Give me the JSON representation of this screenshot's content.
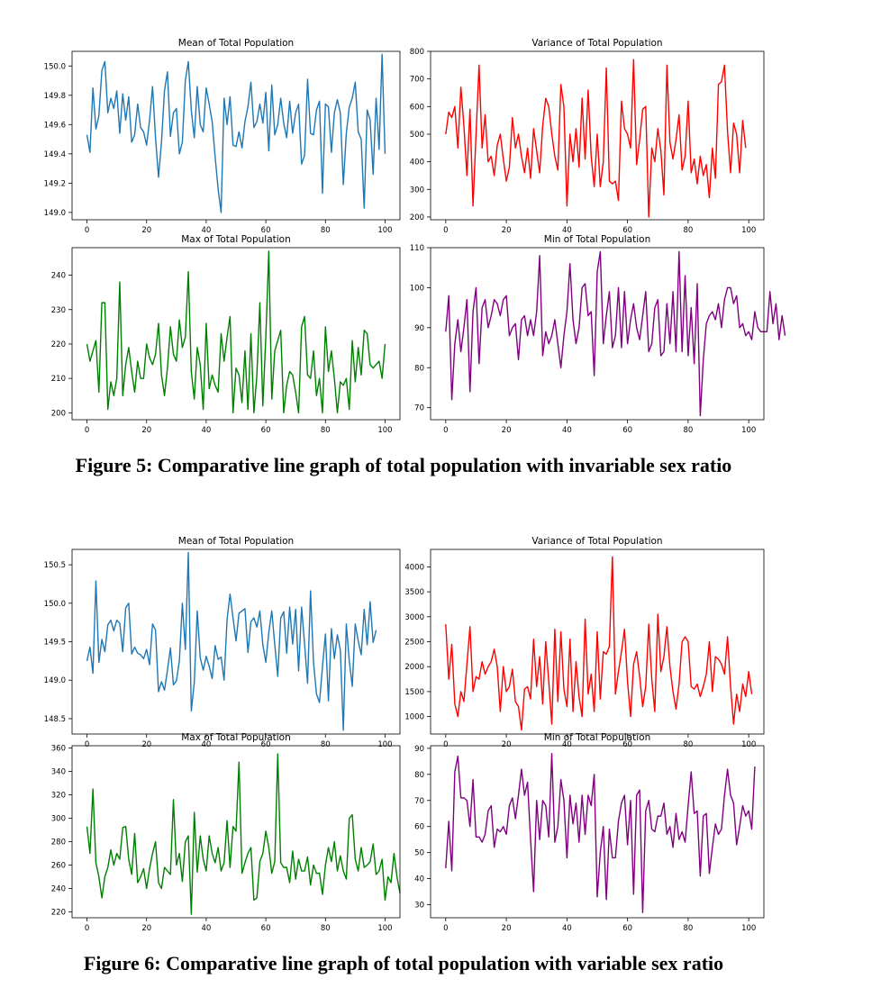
{
  "figures": [
    {
      "caption": "Figure 5: Comparative line graph of total population with invariable sex ratio"
    },
    {
      "caption": "Figure 6: Comparative line graph of total population with variable sex ratio"
    }
  ],
  "colors": {
    "mean": "#1f77b4",
    "variance": "#ff0000",
    "max": "#008000",
    "min": "#800080"
  },
  "chart_data": [
    {
      "type": "line",
      "figure": 5,
      "title": "Mean of Total Population",
      "xlim": [
        -5,
        105
      ],
      "ylim": [
        148.95,
        150.1
      ],
      "xticks": [
        0,
        20,
        40,
        60,
        80,
        100
      ],
      "yticks": [
        149.0,
        149.2,
        149.4,
        149.6,
        149.8,
        150.0
      ],
      "ytick_labels": [
        "149.0",
        "149.2",
        "149.4",
        "149.6",
        "149.8",
        "150.0"
      ],
      "series": [
        {
          "color": "mean",
          "values": [
            149.53,
            149.41,
            149.85,
            149.57,
            149.66,
            149.97,
            150.03,
            149.68,
            149.78,
            149.71,
            149.83,
            149.54,
            149.81,
            149.63,
            149.79,
            149.48,
            149.53,
            149.74,
            149.58,
            149.55,
            149.46,
            149.63,
            149.86,
            149.51,
            149.24,
            149.48,
            149.83,
            149.96,
            149.52,
            149.68,
            149.71,
            149.4,
            149.48,
            149.9,
            150.03,
            149.7,
            149.51,
            149.86,
            149.6,
            149.55,
            149.85,
            149.74,
            149.62,
            149.38,
            149.16,
            149.0,
            149.78,
            149.6,
            149.79,
            149.46,
            149.45,
            149.55,
            149.44,
            149.62,
            149.72,
            149.89,
            149.58,
            149.62,
            149.74,
            149.61,
            149.82,
            149.42,
            149.87,
            149.53,
            149.6,
            149.78,
            149.61,
            149.51,
            149.76,
            149.54,
            149.68,
            149.74,
            149.33,
            149.39,
            149.91,
            149.54,
            149.53,
            149.7,
            149.76,
            149.13,
            149.74,
            149.72,
            149.41,
            149.68,
            149.77,
            149.68,
            149.19,
            149.54,
            149.72,
            149.78,
            149.89,
            149.55,
            149.5,
            149.03,
            149.7,
            149.63,
            149.26,
            149.78,
            149.43,
            150.08,
            149.4
          ]
        }
      ]
    },
    {
      "type": "line",
      "figure": 5,
      "title": "Variance of Total Population",
      "xlim": [
        -5,
        105
      ],
      "ylim": [
        190,
        800
      ],
      "xticks": [
        0,
        20,
        40,
        60,
        80,
        100
      ],
      "yticks": [
        200,
        300,
        400,
        500,
        600,
        700,
        800
      ],
      "ytick_labels": [
        "200",
        "300",
        "400",
        "500",
        "600",
        "700",
        "800"
      ],
      "series": [
        {
          "color": "variance",
          "values": [
            500,
            580,
            560,
            600,
            450,
            670,
            530,
            350,
            590,
            240,
            500,
            750,
            450,
            570,
            400,
            420,
            350,
            460,
            500,
            410,
            330,
            380,
            560,
            450,
            500,
            420,
            360,
            450,
            340,
            520,
            440,
            360,
            530,
            630,
            600,
            500,
            420,
            370,
            680,
            600,
            240,
            500,
            400,
            520,
            380,
            630,
            410,
            660,
            420,
            310,
            500,
            310,
            400,
            740,
            330,
            320,
            330,
            260,
            620,
            520,
            500,
            450,
            770,
            390,
            480,
            590,
            600,
            200,
            450,
            400,
            520,
            440,
            280,
            750,
            470,
            410,
            480,
            570,
            370,
            420,
            620,
            360,
            410,
            320,
            420,
            350,
            390,
            270,
            450,
            340,
            680,
            690,
            750,
            510,
            360,
            540,
            500,
            360,
            550,
            450
          ]
        }
      ]
    },
    {
      "type": "line",
      "figure": 5,
      "title": "Max of Total Population",
      "xlim": [
        -5,
        105
      ],
      "ylim": [
        198,
        248
      ],
      "xticks": [
        0,
        20,
        40,
        60,
        80,
        100
      ],
      "yticks": [
        200,
        210,
        220,
        230,
        240
      ],
      "ytick_labels": [
        "200",
        "210",
        "220",
        "230",
        "240"
      ],
      "series": [
        {
          "color": "max",
          "values": [
            220,
            215,
            218,
            221,
            206,
            232,
            232,
            201,
            209,
            205,
            210,
            238,
            205,
            214,
            219,
            212,
            206,
            215,
            210,
            210,
            220,
            216,
            214,
            217,
            226,
            211,
            205,
            213,
            225,
            217,
            215,
            227,
            219,
            222,
            241,
            212,
            204,
            219,
            214,
            201,
            226,
            207,
            211,
            208,
            206,
            223,
            215,
            222,
            228,
            200,
            213,
            211,
            203,
            218,
            201,
            223,
            200,
            211,
            232,
            202,
            222,
            247,
            204,
            218,
            221,
            224,
            200,
            208,
            212,
            211,
            206,
            200,
            225,
            228,
            211,
            210,
            218,
            205,
            210,
            200,
            225,
            212,
            218,
            210,
            200,
            209,
            208,
            210,
            201,
            221,
            209,
            219,
            211,
            224,
            223,
            214,
            213,
            214,
            215,
            210,
            220
          ]
        }
      ]
    },
    {
      "type": "line",
      "figure": 5,
      "title": "Min of Total Population",
      "xlim": [
        -5,
        105
      ],
      "ylim": [
        67,
        110
      ],
      "xticks": [
        0,
        20,
        40,
        60,
        80,
        100
      ],
      "yticks": [
        70,
        80,
        90,
        100,
        110
      ],
      "ytick_labels": [
        "70",
        "80",
        "90",
        "100",
        "110"
      ],
      "series": [
        {
          "color": "min",
          "values": [
            89,
            98,
            72,
            86,
            92,
            84,
            90,
            97,
            74,
            94,
            100,
            81,
            95,
            97,
            90,
            93,
            97,
            96,
            93,
            97,
            98,
            88,
            90,
            91,
            82,
            92,
            93,
            88,
            92,
            88,
            94,
            108,
            83,
            89,
            86,
            88,
            92,
            86,
            80,
            88,
            94,
            106,
            92,
            86,
            90,
            100,
            101,
            93,
            94,
            78,
            104,
            109,
            86,
            93,
            99,
            85,
            88,
            100,
            85,
            99,
            86,
            92,
            96,
            90,
            87,
            93,
            99,
            84,
            86,
            95,
            97,
            83,
            84,
            96,
            86,
            99,
            84,
            109,
            84,
            103,
            83,
            95,
            81,
            101,
            68,
            82,
            91,
            93,
            94,
            92,
            96,
            90,
            97,
            100,
            100,
            96,
            98,
            90,
            91,
            88,
            89,
            87,
            94,
            90,
            89,
            89,
            89,
            99,
            91,
            96,
            87,
            93,
            88
          ]
        }
      ]
    },
    {
      "type": "line",
      "figure": 6,
      "title": "Mean of Total Population",
      "xlim": [
        -5,
        105
      ],
      "ylim": [
        148.3,
        150.7
      ],
      "xticks": [
        0,
        20,
        40,
        60,
        80,
        100
      ],
      "yticks": [
        148.5,
        149.0,
        149.5,
        150.0,
        150.5
      ],
      "ytick_labels": [
        "148.5",
        "149.0",
        "149.5",
        "150.0",
        "150.5"
      ],
      "series": [
        {
          "color": "mean",
          "values": [
            149.25,
            149.43,
            149.09,
            150.29,
            149.23,
            149.53,
            149.37,
            149.72,
            149.78,
            149.64,
            149.78,
            149.74,
            149.37,
            149.94,
            150.0,
            149.34,
            149.43,
            149.35,
            149.33,
            149.28,
            149.4,
            149.2,
            149.73,
            149.65,
            148.85,
            148.98,
            148.87,
            149.13,
            149.42,
            148.94,
            148.99,
            149.25,
            150.0,
            149.4,
            150.66,
            148.6,
            148.97,
            149.9,
            149.29,
            149.13,
            149.31,
            149.18,
            149.02,
            149.45,
            149.27,
            149.3,
            149.0,
            149.79,
            150.12,
            149.81,
            149.51,
            149.87,
            149.9,
            149.93,
            149.36,
            149.76,
            149.81,
            149.69,
            149.9,
            149.46,
            149.23,
            149.62,
            149.9,
            149.46,
            149.05,
            149.81,
            149.89,
            149.35,
            149.95,
            149.47,
            149.92,
            149.12,
            149.95,
            149.47,
            148.96,
            150.16,
            149.23,
            148.82,
            148.71,
            149.17,
            149.6,
            148.73,
            149.67,
            149.28,
            149.59,
            149.39,
            148.35,
            149.73,
            149.25,
            148.92,
            149.73,
            149.51,
            149.33,
            149.92,
            149.46,
            150.02,
            149.49,
            149.65
          ]
        }
      ]
    },
    {
      "type": "line",
      "figure": 6,
      "title": "Variance of Total Population",
      "xlim": [
        -5,
        105
      ],
      "ylim": [
        650,
        4350
      ],
      "xticks": [
        0,
        20,
        40,
        60,
        80,
        100
      ],
      "yticks": [
        1000,
        1500,
        2000,
        2500,
        3000,
        3500,
        4000
      ],
      "ytick_labels": [
        "1000",
        "1500",
        "2000",
        "2500",
        "3000",
        "3500",
        "4000"
      ],
      "series": [
        {
          "color": "variance",
          "values": [
            2850,
            1750,
            2450,
            1250,
            1000,
            1500,
            1300,
            2050,
            2800,
            1500,
            1800,
            1750,
            2100,
            1850,
            2000,
            2100,
            2350,
            2000,
            1100,
            2000,
            1500,
            1600,
            1950,
            1300,
            1200,
            730,
            1550,
            1600,
            1350,
            2550,
            1600,
            2200,
            1250,
            2500,
            1700,
            850,
            2750,
            1300,
            2700,
            1550,
            1200,
            2550,
            1100,
            2100,
            1400,
            1000,
            2950,
            1450,
            1850,
            1100,
            2700,
            1350,
            2300,
            2250,
            2400,
            4200,
            1450,
            1900,
            2300,
            2750,
            1700,
            1000,
            2050,
            2300,
            1800,
            1200,
            1600,
            2850,
            1750,
            1100,
            3050,
            1900,
            2200,
            2800,
            2000,
            1500,
            1150,
            1650,
            2500,
            2600,
            2500,
            1600,
            1550,
            1650,
            1400,
            1600,
            1850,
            2500,
            1500,
            2200,
            2150,
            2050,
            1850,
            2600,
            1600,
            850,
            1450,
            1100,
            1650,
            1400,
            1900,
            1450
          ]
        }
      ]
    },
    {
      "type": "line",
      "figure": 6,
      "title": "Max of Total Population",
      "xlim": [
        -5,
        105
      ],
      "ylim": [
        215,
        362
      ],
      "xticks": [
        0,
        20,
        40,
        60,
        80,
        100
      ],
      "yticks": [
        220,
        240,
        260,
        280,
        300,
        320,
        340,
        360
      ],
      "ytick_labels": [
        "220",
        "240",
        "260",
        "280",
        "300",
        "320",
        "340",
        "360"
      ],
      "series": [
        {
          "color": "max",
          "values": [
            293,
            270,
            325,
            262,
            250,
            232,
            250,
            258,
            273,
            260,
            270,
            265,
            292,
            293,
            265,
            252,
            287,
            245,
            250,
            257,
            240,
            257,
            270,
            280,
            245,
            240,
            258,
            255,
            252,
            316,
            260,
            270,
            246,
            280,
            285,
            218,
            305,
            254,
            285,
            265,
            255,
            285,
            270,
            262,
            275,
            255,
            262,
            298,
            258,
            293,
            289,
            348,
            253,
            262,
            270,
            275,
            230,
            232,
            263,
            270,
            289,
            275,
            253,
            263,
            355,
            262,
            258,
            258,
            245,
            272,
            248,
            265,
            255,
            255,
            267,
            243,
            260,
            253,
            253,
            235,
            260,
            275,
            263,
            280,
            255,
            268,
            255,
            248,
            300,
            303,
            265,
            255,
            275,
            258,
            260,
            263,
            278,
            252,
            255,
            265,
            230,
            250,
            245,
            270,
            250,
            236
          ]
        }
      ]
    },
    {
      "type": "line",
      "figure": 6,
      "title": "Min of Total Population",
      "xlim": [
        -5,
        105
      ],
      "ylim": [
        25,
        91
      ],
      "xticks": [
        0,
        20,
        40,
        60,
        80,
        100
      ],
      "yticks": [
        30,
        40,
        50,
        60,
        70,
        80,
        90
      ],
      "ytick_labels": [
        "30",
        "40",
        "50",
        "60",
        "70",
        "80",
        "90"
      ],
      "series": [
        {
          "color": "min",
          "values": [
            44,
            62,
            43,
            81,
            87,
            71,
            71,
            70,
            60,
            78,
            56,
            56,
            54,
            57,
            66,
            68,
            52,
            59,
            58,
            60,
            57,
            68,
            71,
            63,
            72,
            82,
            72,
            77,
            55,
            35,
            70,
            55,
            70,
            68,
            56,
            88,
            54,
            60,
            78,
            70,
            48,
            72,
            61,
            69,
            54,
            72,
            57,
            72,
            68,
            80,
            33,
            50,
            60,
            32,
            59,
            48,
            48,
            62,
            69,
            72,
            53,
            70,
            34,
            72,
            74,
            27,
            66,
            70,
            59,
            58,
            64,
            64,
            69,
            57,
            60,
            52,
            65,
            55,
            58,
            54,
            68,
            81,
            65,
            66,
            41,
            64,
            65,
            42,
            52,
            61,
            57,
            59,
            72,
            82,
            72,
            69,
            53,
            60,
            68,
            64,
            66,
            59,
            83
          ]
        }
      ]
    }
  ]
}
